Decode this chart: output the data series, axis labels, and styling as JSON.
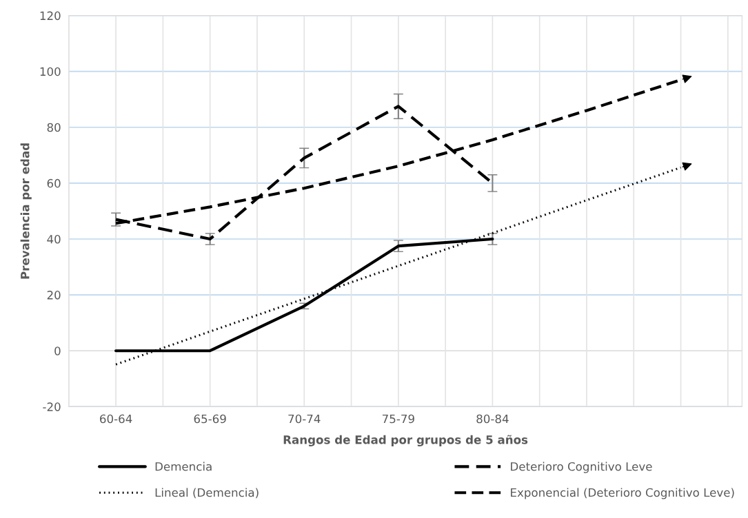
{
  "chart_data": {
    "type": "line",
    "categories": [
      "60-64",
      "65-69",
      "70-74",
      "75-79",
      "80-84",
      null,
      null
    ],
    "xlabel": "Rangos de Edad por grupos de 5 años",
    "ylabel": "Prevalencia por edad",
    "ylim": [
      -20,
      120
    ],
    "yticks": [
      -20,
      0,
      20,
      40,
      60,
      80,
      100,
      120
    ],
    "grid": true,
    "legend": "bottom",
    "series": [
      {
        "name": "Demencia",
        "color": "#000000",
        "line_style": "solid",
        "values": [
          0,
          0,
          16,
          37.5,
          40,
          null,
          null
        ],
        "errors": [
          null,
          null,
          1,
          2,
          2,
          null,
          null
        ]
      },
      {
        "name": "Deterioro Cognitivo Leve",
        "color": "#000000",
        "line_style": "dashed",
        "values": [
          47,
          40,
          69,
          87.5,
          60,
          null,
          null
        ],
        "errors": [
          2.3,
          2,
          3.5,
          4.4,
          3,
          null,
          null
        ]
      },
      {
        "name": "Lineal (Demencia)",
        "color": "#000000",
        "line_style": "dotted",
        "values": [
          -4.9,
          6.9,
          18.6,
          30.4,
          42.1,
          53.9,
          65.6
        ]
      },
      {
        "name": "Exponencial (Deterioro Cognitivo Leve)",
        "color": "#000000",
        "line_style": "dashed",
        "values": [
          45.6,
          51.5,
          58.2,
          66.1,
          75.5,
          86,
          97
        ]
      }
    ]
  }
}
